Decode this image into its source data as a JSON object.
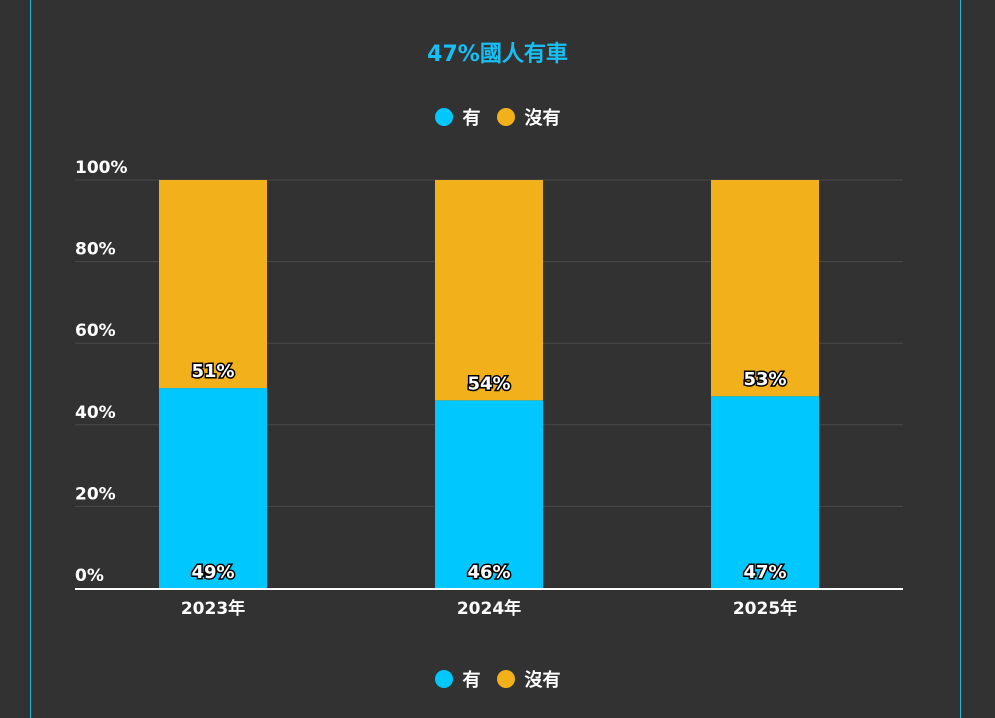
{
  "chart_data": {
    "type": "bar",
    "stacked": true,
    "title": "47%國人有車",
    "title_color": "#16c0f5",
    "categories": [
      "2023年",
      "2024年",
      "2025年"
    ],
    "series": [
      {
        "name": "有",
        "color": "#00c8ff",
        "values": [
          49,
          46,
          47
        ],
        "labels": [
          "49%",
          "46%",
          "47%"
        ]
      },
      {
        "name": "沒有",
        "color": "#f2b01a",
        "values": [
          51,
          54,
          53
        ],
        "labels": [
          "51%",
          "54%",
          "53%"
        ]
      }
    ],
    "ylim": [
      0,
      100
    ],
    "yticks": [
      0,
      20,
      40,
      60,
      80,
      100
    ],
    "ytick_labels": [
      "0%",
      "20%",
      "40%",
      "60%",
      "80%",
      "100%"
    ],
    "grid": true,
    "legend_placement": "top and bottom, centered"
  },
  "legend": {
    "items": [
      {
        "label": "有",
        "color": "#00c8ff"
      },
      {
        "label": "沒有",
        "color": "#f2b01a"
      }
    ]
  }
}
